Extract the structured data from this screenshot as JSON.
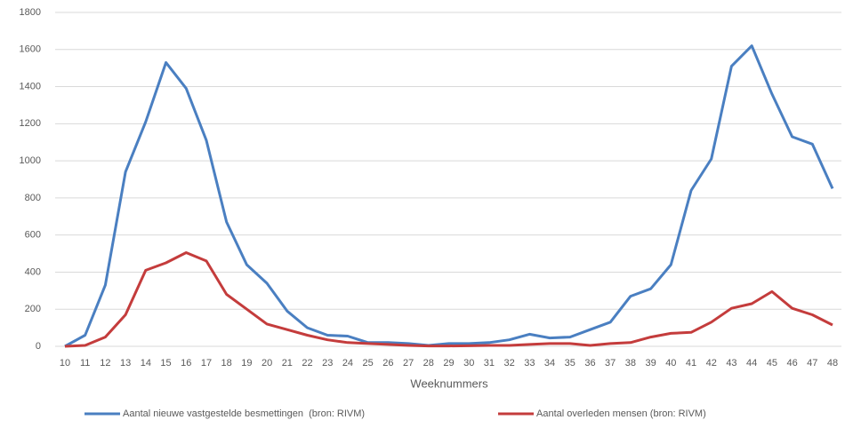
{
  "chart_data": {
    "type": "line",
    "x_label": "Weeknummers",
    "categories": [
      "10",
      "11",
      "12",
      "13",
      "14",
      "15",
      "16",
      "17",
      "18",
      "19",
      "20",
      "21",
      "22",
      "23",
      "24",
      "25",
      "26",
      "27",
      "28",
      "29",
      "30",
      "31",
      "32",
      "33",
      "34",
      "35",
      "36",
      "37",
      "38",
      "39",
      "40",
      "41",
      "42",
      "43",
      "44",
      "45",
      "46",
      "47",
      "48"
    ],
    "series": [
      {
        "name": "Aantal nieuwe vastgestelde besmettingen  (bron: RIVM)",
        "color": "#4a7fc1",
        "values": [
          0,
          60,
          330,
          940,
          1210,
          1530,
          1390,
          1110,
          670,
          440,
          340,
          190,
          100,
          60,
          55,
          20,
          20,
          15,
          5,
          15,
          15,
          20,
          35,
          65,
          45,
          50,
          90,
          130,
          270,
          310,
          440,
          840,
          1010,
          1510,
          1620,
          1360,
          1130,
          1090,
          850
        ]
      },
      {
        "name": "Aantal overleden mensen (bron: RIVM)",
        "color": "#c43c3c",
        "values": [
          0,
          5,
          50,
          170,
          410,
          450,
          505,
          460,
          280,
          200,
          120,
          90,
          60,
          35,
          20,
          15,
          10,
          5,
          2,
          2,
          3,
          5,
          5,
          10,
          15,
          15,
          5,
          15,
          20,
          50,
          70,
          75,
          130,
          205,
          230,
          295,
          205,
          170,
          115
        ]
      }
    ],
    "ylim": [
      0,
      1800
    ],
    "yticks": [
      0,
      200,
      400,
      600,
      800,
      1000,
      1200,
      1400,
      1600,
      1800
    ],
    "grid": true
  }
}
